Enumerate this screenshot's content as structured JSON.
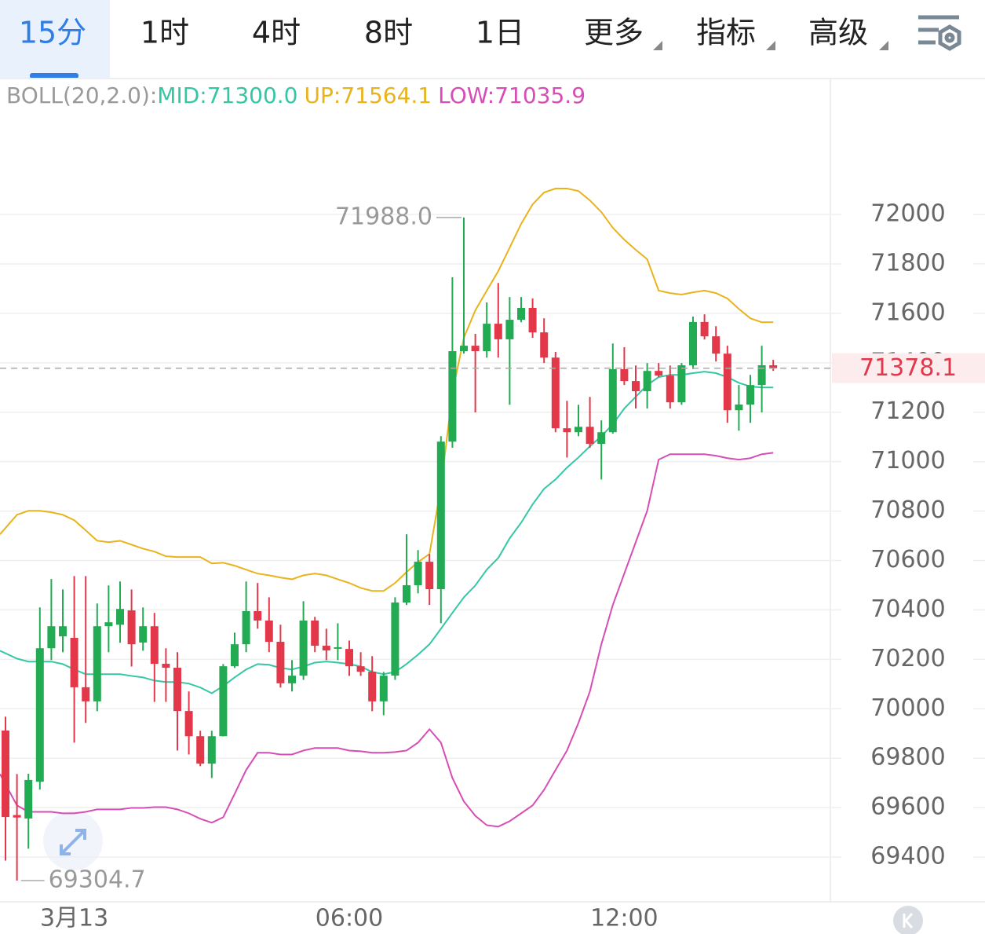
{
  "chart_data": {
    "type": "candlestick",
    "tabs": [
      "15分",
      "1时",
      "4时",
      "8时",
      "1日",
      "更多",
      "指标",
      "高级"
    ],
    "indicator": "BOLL(20,2.0):",
    "categories": [
      null,
      null,
      null,
      null,
      null,
      null,
      "3月13",
      null,
      null,
      null,
      null,
      null,
      null,
      null,
      null,
      null,
      null,
      null,
      null,
      null,
      null,
      null,
      null,
      null,
      null,
      null,
      null,
      null,
      null,
      null,
      "06:00",
      null,
      null,
      null,
      null,
      null,
      null,
      null,
      null,
      null,
      null,
      null,
      null,
      null,
      null,
      null,
      null,
      null,
      null,
      null,
      null,
      null,
      null,
      null,
      "12:00",
      null,
      null,
      null,
      null,
      null,
      null,
      null,
      null,
      null,
      null,
      null,
      null,
      null
    ],
    "open": [
      69912,
      69570,
      69556,
      69705,
      70245,
      70293,
      70287,
      70087,
      70030,
      70334,
      70340,
      70398,
      70268,
      70334,
      70182,
      70166,
      69991,
      69889,
      69778,
      69889,
      70172,
      70261,
      70395,
      70357,
      70271,
      70103,
      70134,
      70357,
      70255,
      70245,
      70242,
      70172,
      70150,
      70030,
      70134,
      70430,
      70500,
      70595,
      70484,
      71081,
      71447,
      71469,
      71447,
      71558,
      71495,
      71574,
      71622,
      71523,
      71421,
      71135,
      71119,
      71141,
      71072,
      71119,
      71374,
      71326,
      71285,
      71367,
      71348,
      71240,
      71390,
      71565,
      71507,
      71437,
      71208,
      71231,
      71310,
      71390
    ],
    "high": [
      69968,
      69736,
      69737,
      70410,
      70525,
      70483,
      70537,
      70537,
      70426,
      70499,
      70515,
      70483,
      70410,
      70388,
      70245,
      70229,
      70070,
      69911,
      69911,
      70181,
      70308,
      70515,
      70509,
      70451,
      70340,
      70197,
      70435,
      70372,
      70324,
      70346,
      70276,
      70229,
      70213,
      70149,
      70451,
      70706,
      70642,
      70626,
      71103,
      71746,
      71988,
      71517,
      71644,
      71723,
      71666,
      71666,
      71660,
      71580,
      71444,
      71246,
      71230,
      71262,
      71167,
      71478,
      71463,
      71389,
      71399,
      71399,
      71389,
      71399,
      71587,
      71596,
      71548,
      71469,
      71310,
      71351,
      71469,
      71412
    ],
    "low": [
      69386,
      69304.7,
      69434,
      69673,
      70197,
      70229,
      69863,
      69943,
      69990,
      70229,
      70267,
      70171,
      70235,
      70028,
      70028,
      69831,
      69815,
      69768,
      69720,
      69888,
      70165,
      70229,
      70324,
      70229,
      70086,
      70070,
      70117,
      70229,
      70197,
      70197,
      70133,
      70133,
      69990,
      69974,
      70117,
      70420,
      70467,
      70420,
      70346,
      71056,
      71437,
      71199,
      71421,
      71421,
      71230,
      71564,
      71501,
      71399,
      71119,
      71017,
      71103,
      71056,
      70928,
      71113,
      71310,
      71215,
      71215,
      71342,
      71215,
      71230,
      71374,
      71494,
      71405,
      71157,
      71125,
      71157,
      71199,
      71367
    ],
    "close": [
      69562,
      69560,
      69712,
      70245,
      70334,
      70334,
      70087,
      70030,
      70334,
      70350,
      70404,
      70261,
      70334,
      70182,
      70166,
      69991,
      69889,
      69778,
      69889,
      70172,
      70261,
      70395,
      70357,
      70271,
      70103,
      70134,
      70357,
      70255,
      70236,
      70249,
      70172,
      70150,
      70030,
      70134,
      70430,
      70500,
      70595,
      70484,
      71081,
      71447,
      71469,
      71447,
      71558,
      71495,
      71574,
      71622,
      71523,
      71421,
      71135,
      71119,
      71141,
      71072,
      71119,
      71374,
      71326,
      71285,
      71367,
      71348,
      71240,
      71390,
      71565,
      71507,
      71437,
      71208,
      71231,
      71310,
      71390,
      71378.1
    ],
    "up_color": "#22ab52",
    "down_color": "#e3384a",
    "series": [
      {
        "label": "MID:71300.0",
        "color": "#35c7a5",
        "values": [
          70235,
          70203,
          70191,
          70191,
          70191,
          70181,
          70159,
          70140,
          70140,
          70140,
          70140,
          70133,
          70127,
          70114,
          70108,
          70108,
          70102,
          70086,
          70063,
          70092,
          70127,
          70159,
          70181,
          70178,
          70165,
          70159,
          70171,
          70187,
          70191,
          70187,
          70181,
          70171,
          70149,
          70140,
          70149,
          70181,
          70219,
          70261,
          70324,
          70388,
          70451,
          70499,
          70563,
          70610,
          70690,
          70753,
          70827,
          70890,
          70928,
          70976,
          71017,
          71062,
          71103,
          71151,
          71215,
          71262,
          71310,
          71342,
          71351,
          71351,
          71358,
          71364,
          71358,
          71342,
          71319,
          71304,
          71300,
          71300
        ]
      },
      {
        "label": "UP:71564.1",
        "color": "#e8b31c",
        "values": [
          70706,
          70785,
          70801,
          70801,
          70795,
          70785,
          70763,
          70722,
          70680,
          70674,
          70680,
          70664,
          70648,
          70636,
          70617,
          70614,
          70614,
          70614,
          70588,
          70591,
          70579,
          70563,
          70547,
          70540,
          70531,
          70524,
          70540,
          70547,
          70540,
          70524,
          70509,
          70489,
          70477,
          70477,
          70509,
          70553,
          70594,
          70626,
          70897,
          71278,
          71501,
          71612,
          71692,
          71771,
          71866,
          71962,
          72041,
          72089,
          72105,
          72105,
          72095,
          72057,
          72010,
          71946,
          71898,
          71857,
          71819,
          71692,
          71682,
          71676,
          71685,
          71692,
          71682,
          71660,
          71618,
          71580,
          71564,
          71564.1
        ]
      },
      {
        "label": "LOW:71035.9",
        "color": "#d64db5",
        "values": [
          69736,
          69609,
          69583,
          69583,
          69583,
          69577,
          69577,
          69583,
          69593,
          69593,
          69593,
          69599,
          69599,
          69602,
          69602,
          69593,
          69577,
          69555,
          69539,
          69561,
          69656,
          69752,
          69822,
          69822,
          69815,
          69815,
          69831,
          69841,
          69841,
          69841,
          69831,
          69828,
          69822,
          69822,
          69825,
          69831,
          69863,
          69917,
          69863,
          69720,
          69625,
          69567,
          69529,
          69523,
          69545,
          69577,
          69609,
          69672,
          69752,
          69831,
          69943,
          70070,
          70261,
          70420,
          70547,
          70674,
          70801,
          71008,
          71030,
          71030,
          71030,
          71030,
          71024,
          71014,
          71008,
          71014,
          71030,
          71035.9
        ]
      }
    ],
    "max_label": "71988.0",
    "min_label": "69304.7",
    "ylim": [
      69219,
      72550
    ],
    "yticks": [
      69400,
      69600,
      69800,
      70000,
      70200,
      70400,
      70600,
      70800,
      71000,
      71200,
      71400,
      71600,
      71800,
      72000
    ],
    "grid": true
  }
}
